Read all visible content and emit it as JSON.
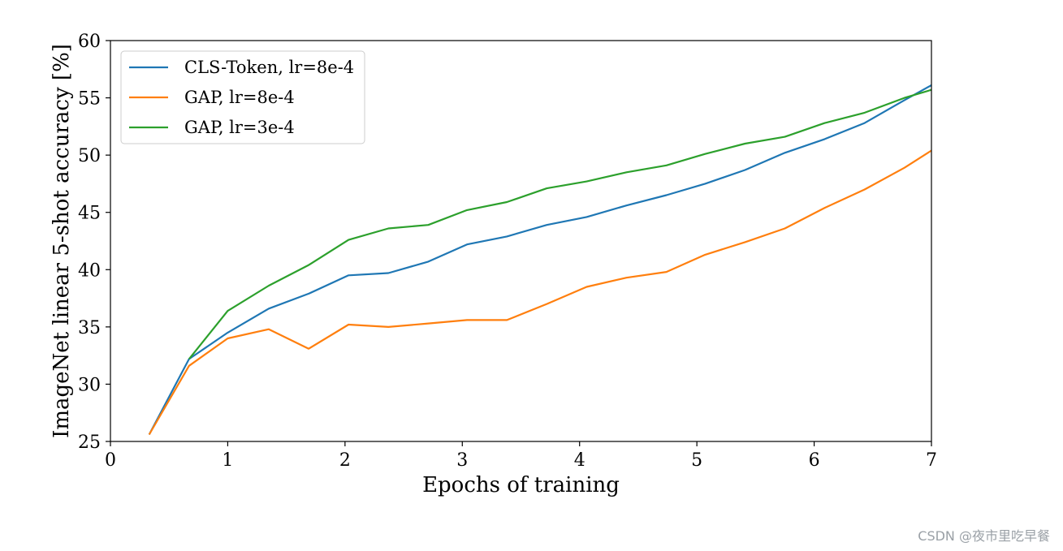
{
  "chart_data": {
    "type": "line",
    "title": "",
    "xlabel": "Epochs of training",
    "ylabel": "ImageNet linear 5-shot accuracy [%]",
    "xlim": [
      0,
      7
    ],
    "ylim": [
      25,
      60
    ],
    "xticks": [
      0,
      1,
      2,
      3,
      4,
      5,
      6,
      7
    ],
    "yticks": [
      25,
      30,
      35,
      40,
      45,
      50,
      55,
      60
    ],
    "grid": false,
    "legend_position": "top-left",
    "series": [
      {
        "name": "CLS-Token, lr=8e-4",
        "color": "#1f77b4",
        "x": [
          0.33,
          0.67,
          1.0,
          1.35,
          1.69,
          2.03,
          2.37,
          2.71,
          3.04,
          3.38,
          3.72,
          4.06,
          4.4,
          4.74,
          5.07,
          5.41,
          5.75,
          6.09,
          6.43,
          6.77,
          7.0
        ],
        "y": [
          25.6,
          32.2,
          34.5,
          36.6,
          37.9,
          39.5,
          39.7,
          40.7,
          42.2,
          42.9,
          43.9,
          44.6,
          45.6,
          46.5,
          47.5,
          48.7,
          50.2,
          51.4,
          52.8,
          54.8,
          56.1
        ]
      },
      {
        "name": "GAP, lr=8e-4",
        "color": "#ff7f0e",
        "x": [
          0.33,
          0.67,
          1.0,
          1.35,
          1.69,
          2.03,
          2.37,
          2.71,
          3.04,
          3.38,
          3.72,
          4.06,
          4.4,
          4.74,
          5.07,
          5.41,
          5.75,
          6.09,
          6.43,
          6.77,
          7.0
        ],
        "y": [
          25.6,
          31.6,
          34.0,
          34.8,
          33.1,
          35.2,
          35.0,
          35.3,
          35.6,
          35.6,
          37.0,
          38.5,
          39.3,
          39.8,
          41.3,
          42.4,
          43.6,
          45.4,
          47.0,
          48.9,
          50.4
        ]
      },
      {
        "name": "GAP, lr=3e-4",
        "color": "#2ca02c",
        "x": [
          0.67,
          1.0,
          1.35,
          1.69,
          2.03,
          2.37,
          2.71,
          3.04,
          3.38,
          3.72,
          4.06,
          4.4,
          4.74,
          5.07,
          5.41,
          5.75,
          6.09,
          6.43,
          6.77,
          7.0
        ],
        "y": [
          32.2,
          36.4,
          38.6,
          40.4,
          42.6,
          43.6,
          43.9,
          45.2,
          45.9,
          47.1,
          47.7,
          48.5,
          49.1,
          50.1,
          51.0,
          51.6,
          52.8,
          53.7,
          55.0,
          55.7
        ]
      }
    ]
  },
  "watermark": "CSDN @夜市里吃早餐"
}
